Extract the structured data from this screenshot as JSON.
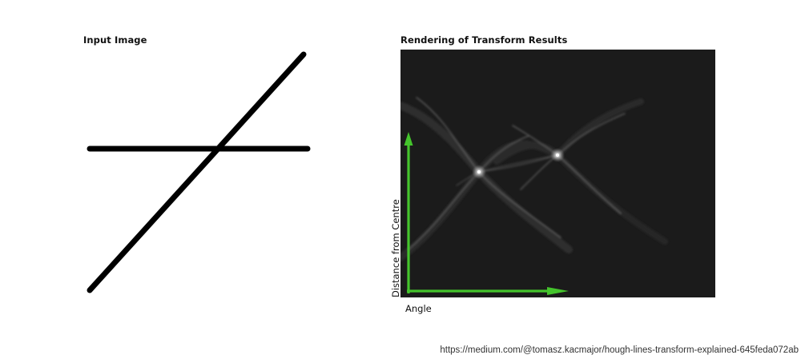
{
  "input_panel": {
    "title": "Input Image"
  },
  "transform_panel": {
    "title": "Rendering of Transform Results",
    "x_axis_label": "Angle",
    "y_axis_label": "Distance from Centre",
    "arrow_color": "#44c42c",
    "background_color": "#1b1b1b"
  },
  "source_url": "https://medium.com/@tomasz.kacmajor/hough-lines-transform-explained-645feda072ab"
}
